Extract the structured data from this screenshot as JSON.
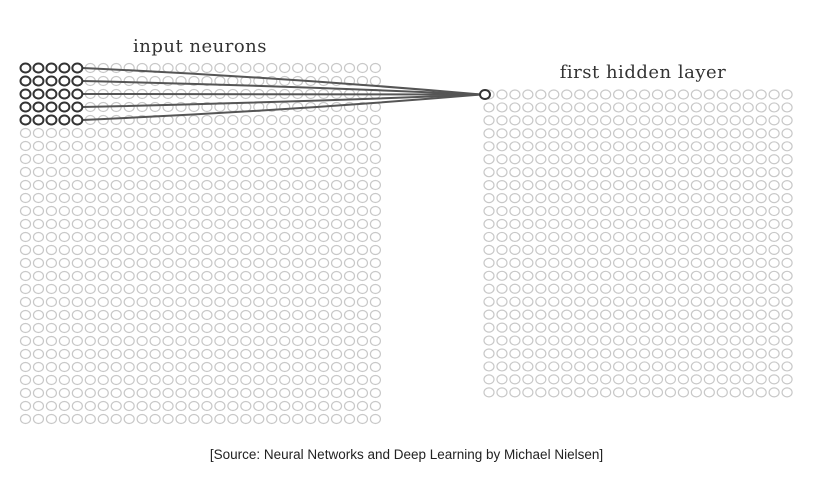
{
  "diagram": {
    "input_label": "input neurons",
    "hidden_label": "first hidden layer",
    "input_grid": {
      "rows": 28,
      "cols": 28
    },
    "hidden_grid": {
      "rows": 24,
      "cols": 24
    },
    "receptive_field": {
      "rows": 5,
      "cols": 5
    }
  },
  "caption": "[Source: Neural Networks and Deep Learning by Michael Nielsen]",
  "colors": {
    "neuron_faint": "#c8c8c8",
    "neuron_active": "#333333",
    "connection": "#555555"
  }
}
